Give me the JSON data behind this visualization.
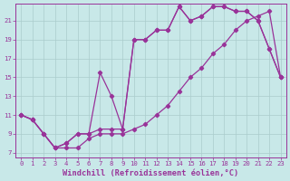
{
  "bg_color": "#c8e8e8",
  "line_color": "#993399",
  "grid_color": "#aacccc",
  "xlabel": "Windchill (Refroidissement éolien,°C)",
  "xlabel_color": "#993399",
  "xticks": [
    0,
    1,
    2,
    3,
    4,
    5,
    6,
    7,
    8,
    9,
    10,
    11,
    12,
    13,
    14,
    15,
    16,
    17,
    18,
    19,
    20,
    21,
    22,
    23
  ],
  "yticks": [
    7,
    9,
    11,
    13,
    15,
    17,
    19,
    21
  ],
  "xlim": [
    -0.5,
    23.5
  ],
  "ylim": [
    6.5,
    22.8
  ],
  "line1_x": [
    0,
    1,
    2,
    3,
    4,
    5,
    6,
    7,
    8,
    9,
    10,
    11,
    12,
    13,
    14,
    15,
    16,
    17,
    18,
    19,
    20,
    21,
    22,
    23
  ],
  "line1_y": [
    11.0,
    10.5,
    9.0,
    7.5,
    8.0,
    9.0,
    9.0,
    9.5,
    9.5,
    9.5,
    19.0,
    19.0,
    20.0,
    20.0,
    22.5,
    21.0,
    21.5,
    22.5,
    22.5,
    22.0,
    22.0,
    21.0,
    18.0,
    15.0
  ],
  "line2_x": [
    0,
    1,
    2,
    3,
    4,
    5,
    6,
    7,
    8,
    9,
    10,
    11,
    12,
    13,
    14,
    15,
    16,
    17,
    18,
    19,
    20,
    21,
    22,
    23
  ],
  "line2_y": [
    11.0,
    10.5,
    9.0,
    7.5,
    7.5,
    7.5,
    8.5,
    9.0,
    9.0,
    9.0,
    9.5,
    10.0,
    11.0,
    12.0,
    13.5,
    15.0,
    16.0,
    17.5,
    18.5,
    20.0,
    21.0,
    21.5,
    22.0,
    15.0
  ],
  "line3_x": [
    0,
    1,
    2,
    3,
    4,
    5,
    6,
    7,
    8,
    9,
    10,
    11,
    12,
    13,
    14,
    15,
    16,
    17,
    18,
    19,
    20,
    21,
    22,
    23
  ],
  "line3_y": [
    11.0,
    10.5,
    9.0,
    7.5,
    8.0,
    9.0,
    9.0,
    15.5,
    13.0,
    9.5,
    19.0,
    19.0,
    20.0,
    20.0,
    22.5,
    21.0,
    21.5,
    22.5,
    22.5,
    22.0,
    22.0,
    21.0,
    18.0,
    15.0
  ],
  "marker": "D",
  "markersize": 2.2,
  "linewidth": 0.9,
  "tick_fontsize": 5.2,
  "xlabel_fontsize": 6.2
}
